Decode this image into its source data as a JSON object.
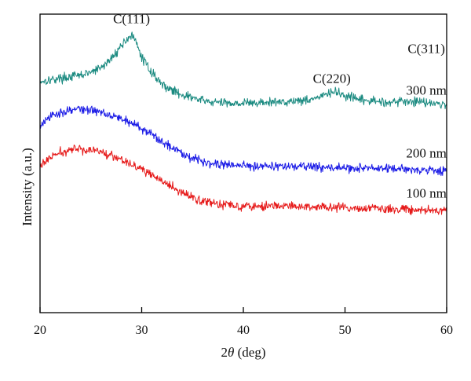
{
  "chart_data": {
    "type": "line",
    "title": "",
    "xlabel": "2θ (deg)",
    "xlabel_parts": {
      "symbol": "θ",
      "prefix": "2",
      "suffix": " (deg)"
    },
    "ylabel": "Intensity (a.u.)",
    "xlim": [
      20,
      60
    ],
    "xticks": [
      "20",
      "30",
      "40",
      "50",
      "60"
    ],
    "y_tick_labels_shown": false,
    "ylim": [
      0,
      100
    ],
    "grid": false,
    "legend": "none",
    "series": [
      {
        "name": "300 nm",
        "color": "#1a8a80",
        "noise": 1.5,
        "x": [
          20,
          22,
          24,
          25,
          26,
          27,
          28,
          28.5,
          29,
          29.5,
          30,
          31,
          32,
          33,
          34,
          35,
          36,
          37,
          38,
          40,
          42,
          44,
          46,
          47,
          48,
          48.5,
          49,
          49.5,
          50,
          51,
          52,
          54,
          56,
          58,
          59,
          60
        ],
        "y": [
          77.5,
          78.5,
          79.5,
          80.5,
          82,
          85,
          89.5,
          91.5,
          93,
          90,
          85.5,
          80.5,
          76.5,
          74.5,
          73,
          72,
          71,
          70.5,
          70.3,
          70.2,
          70.3,
          70.7,
          71.2,
          71.8,
          72.8,
          73.6,
          73.9,
          73.4,
          72.5,
          71.6,
          71,
          70.6,
          70.8,
          70.7,
          70,
          69.3
        ]
      },
      {
        "name": "200 nm",
        "color": "#1a1ae6",
        "noise": 1.5,
        "x": [
          20,
          21,
          22,
          23,
          24,
          25,
          26,
          27,
          28,
          29,
          30,
          31,
          32,
          33,
          34,
          35,
          36,
          37,
          38,
          39,
          40,
          42,
          44,
          46,
          48,
          50,
          52,
          54,
          56,
          58,
          60
        ],
        "y": [
          62.5,
          65.5,
          67,
          68,
          68.2,
          67.8,
          67.2,
          66.3,
          65,
          63.5,
          61.8,
          59.5,
          57.3,
          55.5,
          53.5,
          51.8,
          50.8,
          50,
          49.6,
          49.4,
          49.3,
          49.2,
          49,
          48.9,
          48.7,
          48.4,
          48.4,
          48.2,
          48,
          47.8,
          47.5
        ]
      },
      {
        "name": "100 nm",
        "color": "#e61a1a",
        "noise": 1.5,
        "x": [
          20,
          21,
          22,
          23,
          24,
          25,
          26,
          27,
          28,
          29,
          30,
          31,
          32,
          33,
          34,
          35,
          36,
          37,
          38,
          39,
          40,
          42,
          44,
          46,
          48,
          50,
          52,
          54,
          56,
          58,
          60
        ],
        "y": [
          49,
          52,
          53.5,
          54.5,
          54.8,
          54.5,
          53.8,
          52.8,
          51.5,
          49.8,
          48,
          46,
          44,
          42,
          40,
          38.5,
          37.5,
          36.8,
          36.3,
          36,
          35.9,
          35.8,
          35.7,
          35.5,
          35.3,
          35.1,
          35,
          34.8,
          34.6,
          34.3,
          34
        ]
      }
    ],
    "annotations": [
      {
        "text": "C(111)",
        "x": 29,
        "y": 97
      },
      {
        "text": "C(220)",
        "x": 48.7,
        "y": 77
      },
      {
        "text": "C(311)",
        "x": 58,
        "y": 87
      },
      {
        "text": "300 nm",
        "x": 58,
        "y": 73
      },
      {
        "text": "200 nm",
        "x": 58,
        "y": 52
      },
      {
        "text": "100 nm",
        "x": 58,
        "y": 38.5
      }
    ]
  }
}
